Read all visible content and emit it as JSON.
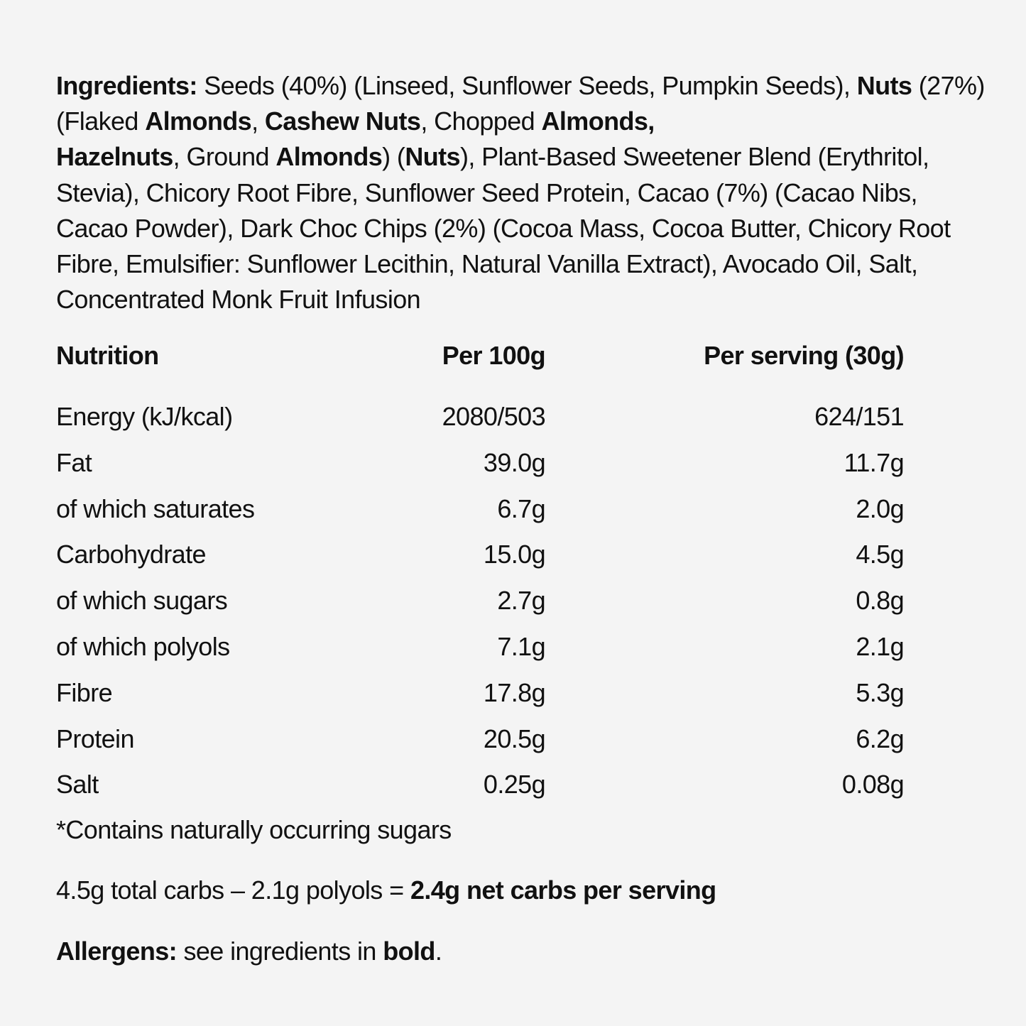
{
  "ingredients": {
    "label": "Ingredients:",
    "t1": " Seeds (40%) (Linseed, Sunflower Seeds, Pumpkin Seeds), ",
    "b1": "Nuts",
    "t2": " (27%) (Flaked ",
    "b2": "Almonds",
    "t3": ", ",
    "b3": "Cashew Nuts",
    "t4": ", Chopped ",
    "b4": "Almonds,",
    "t5": " ",
    "b5": "Hazelnuts",
    "t6": ", Ground ",
    "b6": "Almonds",
    "t7": ") (",
    "b7": "Nuts",
    "t8": "), Plant-Based Sweetener Blend (Erythritol, Stevia), Chicory Root Fibre, Sunflower Seed Protein, Cacao (7%) (Cacao Nibs, Cacao Powder), Dark Choc Chips (2%) (Cocoa Mass, Cocoa Butter, Chicory Root Fibre, Emulsifier: Sunflower Lecithin, Natural Vanilla Extract), Avocado Oil, Salt, Concentrated Monk Fruit Infusion"
  },
  "nutrition": {
    "headers": {
      "name": "Nutrition",
      "per100": "Per 100g",
      "perServing": "Per serving (30g)"
    },
    "rows": [
      {
        "name": "Energy (kJ/kcal)",
        "per100": "2080/503",
        "perServing": "624/151"
      },
      {
        "name": "Fat",
        "per100": "39.0g",
        "perServing": "11.7g"
      },
      {
        "name": "of which saturates",
        "per100": "6.7g",
        "perServing": "2.0g"
      },
      {
        "name": "Carbohydrate",
        "per100": "15.0g",
        "perServing": "4.5g"
      },
      {
        "name": "of which sugars",
        "per100": "2.7g",
        "perServing": "0.8g"
      },
      {
        "name": "of which polyols",
        "per100": "7.1g",
        "perServing": "2.1g"
      },
      {
        "name": "Fibre",
        "per100": "17.8g",
        "perServing": "5.3g"
      },
      {
        "name": "Protein",
        "per100": "20.5g",
        "perServing": "6.2g"
      },
      {
        "name": "Salt",
        "per100": "0.25g",
        "perServing": "0.08g"
      }
    ]
  },
  "footnote": "*Contains naturally occurring sugars",
  "netcarbs": {
    "text": "4.5g total carbs – 2.1g polyols = ",
    "bold": "2.4g net carbs per serving"
  },
  "allergens": {
    "label": "Allergens:",
    "text": " see ingredients in ",
    "bold": "bold",
    "end": "."
  }
}
